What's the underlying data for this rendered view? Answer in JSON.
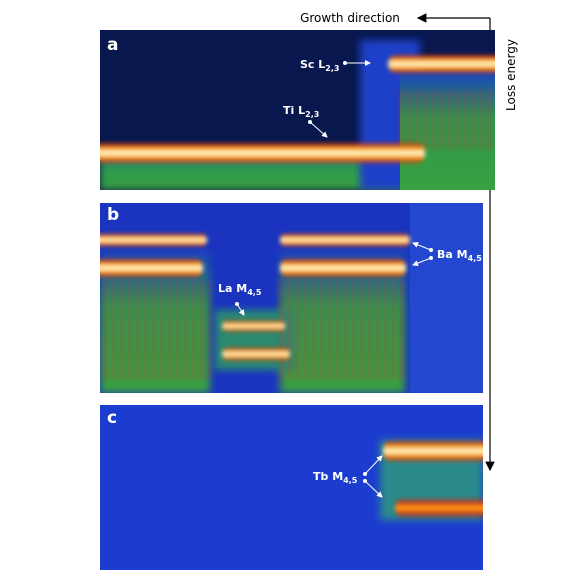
{
  "header": {
    "growth_direction": "Growth direction",
    "loss_energy": "Loss energy"
  },
  "panels": [
    {
      "label": "a",
      "annotations": [
        {
          "text": "Sc L",
          "sub": "2,3"
        },
        {
          "text": "Ti L",
          "sub": "2,3"
        }
      ]
    },
    {
      "label": "b",
      "annotations": [
        {
          "text": "Ba M",
          "sub": "4,5"
        },
        {
          "text": "La M",
          "sub": "4,5"
        }
      ]
    },
    {
      "label": "c",
      "annotations": [
        {
          "text": "Tb M",
          "sub": "4,5"
        }
      ]
    }
  ]
}
